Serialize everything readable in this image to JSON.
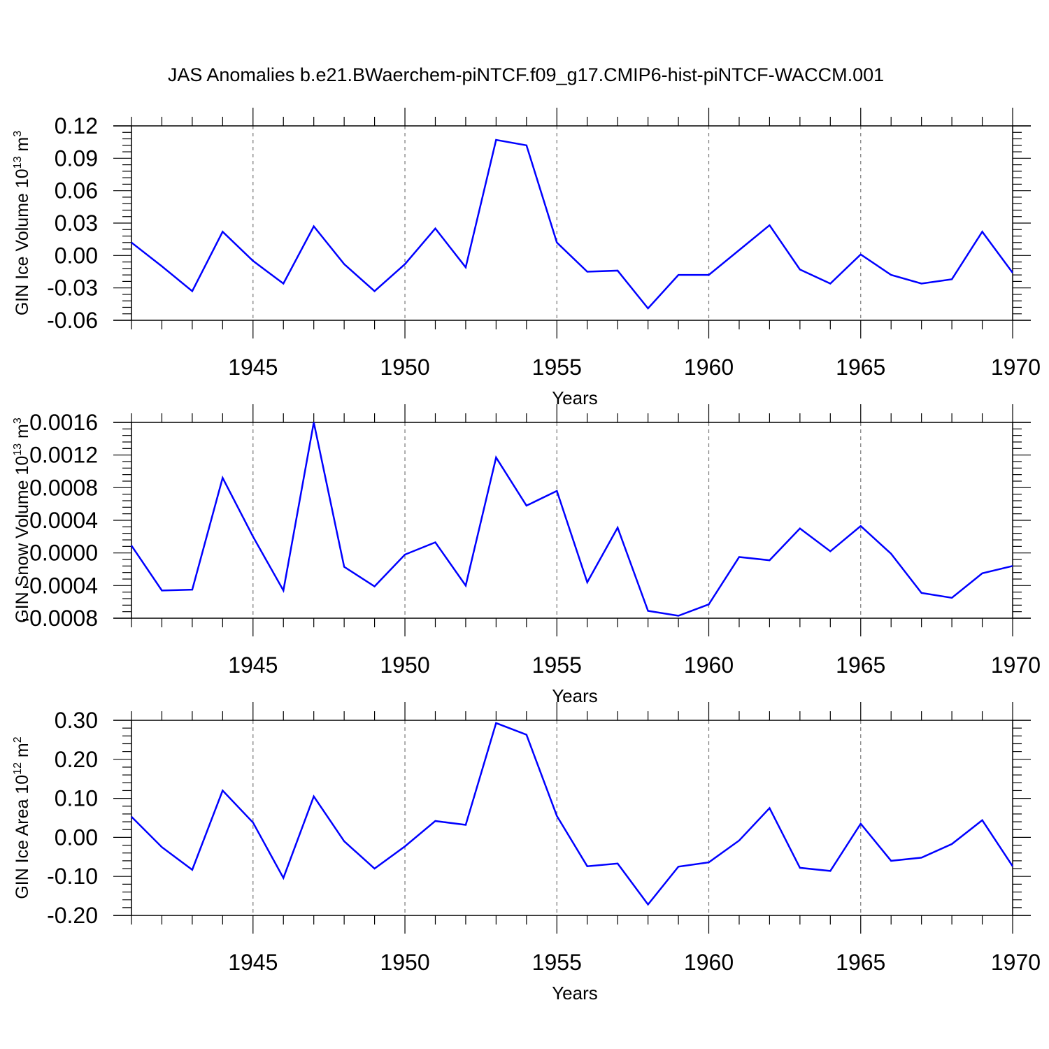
{
  "title": "JAS Anomalies b.e21.BWaerchem-piNTCF.f09_g17.CMIP6-hist-piNTCF-WACCM.001",
  "colors": {
    "line": "#0000ff",
    "axis": "#000000",
    "grid": "#777777"
  },
  "chart_data": [
    {
      "type": "line",
      "ylabel": {
        "text": "GIN Ice Volume 10",
        "sup": "13",
        "unit": " m",
        "unit_sup": "3"
      },
      "xlabel": "Years",
      "xlim": [
        1941,
        1970
      ],
      "ylim": [
        -0.06,
        0.12
      ],
      "x_ticks": [
        1945,
        1950,
        1955,
        1960,
        1965,
        1970
      ],
      "y_ticks": [
        "0.12",
        "0.09",
        "0.06",
        "0.03",
        "0.00",
        "-0.03",
        "-0.06"
      ],
      "grid": "dashed vertical at labeled years",
      "x": [
        1941,
        1942,
        1943,
        1944,
        1945,
        1946,
        1947,
        1948,
        1949,
        1950,
        1951,
        1952,
        1953,
        1954,
        1955,
        1956,
        1957,
        1958,
        1959,
        1960,
        1961,
        1962,
        1963,
        1964,
        1965,
        1966,
        1967,
        1968,
        1969,
        1970
      ],
      "series": [
        {
          "values": [
            0.012,
            -0.01,
            -0.033,
            0.022,
            -0.005,
            -0.026,
            0.027,
            -0.008,
            -0.033,
            -0.008,
            0.025,
            -0.011,
            0.107,
            0.102,
            0.012,
            -0.015,
            -0.014,
            -0.049,
            -0.018,
            -0.018,
            0.005,
            0.028,
            -0.013,
            -0.026,
            0.001,
            -0.018,
            -0.026,
            -0.022,
            0.022,
            -0.016
          ]
        }
      ]
    },
    {
      "type": "line",
      "ylabel": {
        "text": "GIN Snow Volume 10",
        "sup": "13",
        "unit": " m",
        "unit_sup": "3"
      },
      "xlabel": "Years",
      "xlim": [
        1941,
        1970
      ],
      "ylim": [
        -0.0008,
        0.0016
      ],
      "x_ticks": [
        1945,
        1950,
        1955,
        1960,
        1965,
        1970
      ],
      "y_ticks": [
        "0.0016",
        "0.0012",
        "0.0008",
        "0.0004",
        "0.0000",
        "-0.0004",
        "-0.0008"
      ],
      "grid": "dashed vertical at labeled years",
      "x": [
        1941,
        1942,
        1943,
        1944,
        1945,
        1946,
        1947,
        1948,
        1949,
        1950,
        1951,
        1952,
        1953,
        1954,
        1955,
        1956,
        1957,
        1958,
        1959,
        1960,
        1961,
        1962,
        1963,
        1964,
        1965,
        1966,
        1967,
        1968,
        1969,
        1970
      ],
      "series": [
        {
          "values": [
            9e-05,
            -0.00046,
            -0.00045,
            0.00092,
            0.0002,
            -0.00046,
            0.0016,
            -0.00017,
            -0.00041,
            -2e-05,
            0.00013,
            -0.0004,
            0.00117,
            0.00058,
            0.00076,
            -0.00036,
            0.00031,
            -0.00071,
            -0.00077,
            -0.00063,
            -5e-05,
            -9e-05,
            0.0003,
            2e-05,
            0.00033,
            -1e-05,
            -0.00049,
            -0.00055,
            -0.00025,
            -0.00016
          ]
        }
      ]
    },
    {
      "type": "line",
      "ylabel": {
        "text": "GIN Ice Area 10",
        "sup": "12",
        "unit": " m",
        "unit_sup": "2"
      },
      "xlabel": "Years",
      "xlim": [
        1941,
        1970
      ],
      "ylim": [
        -0.2,
        0.3
      ],
      "x_ticks": [
        1945,
        1950,
        1955,
        1960,
        1965,
        1970
      ],
      "y_ticks": [
        "0.30",
        "0.20",
        "0.10",
        "0.00",
        "-0.10",
        "-0.20"
      ],
      "grid": "dashed vertical at labeled years",
      "x": [
        1941,
        1942,
        1943,
        1944,
        1945,
        1946,
        1947,
        1948,
        1949,
        1950,
        1951,
        1952,
        1953,
        1954,
        1955,
        1956,
        1957,
        1958,
        1959,
        1960,
        1961,
        1962,
        1963,
        1964,
        1965,
        1966,
        1967,
        1968,
        1969,
        1970
      ],
      "series": [
        {
          "values": [
            0.053,
            -0.025,
            -0.083,
            0.12,
            0.038,
            -0.104,
            0.105,
            -0.01,
            -0.08,
            -0.023,
            0.042,
            0.032,
            0.293,
            0.263,
            0.055,
            -0.074,
            -0.067,
            -0.172,
            -0.075,
            -0.064,
            -0.008,
            0.075,
            -0.078,
            -0.086,
            0.035,
            -0.06,
            -0.052,
            -0.017,
            0.044,
            -0.074
          ]
        }
      ]
    }
  ]
}
